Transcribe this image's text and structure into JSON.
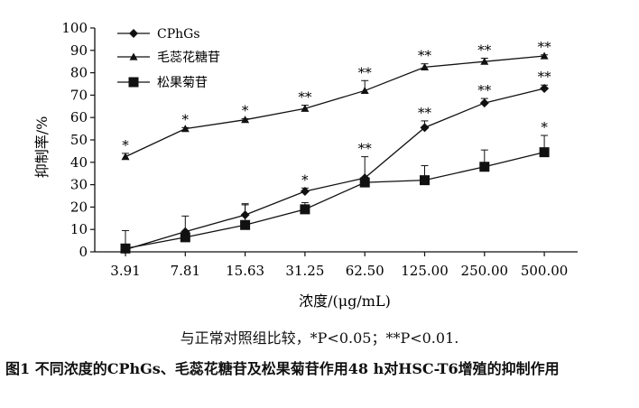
{
  "chart_data": {
    "type": "line",
    "categories": [
      "3.91",
      "7.81",
      "15.63",
      "31.25",
      "62.50",
      "125.00",
      "250.00",
      "500.00"
    ],
    "xlabel": "浓度/(μg/mL)",
    "ylabel": "抑制率/%",
    "ylim": [
      0,
      100
    ],
    "yticks": [
      0,
      10,
      20,
      30,
      40,
      50,
      60,
      70,
      80,
      90,
      100
    ],
    "grid": false,
    "legend_position": "top-left",
    "series": [
      {
        "name": "CPhGs",
        "marker": "diamond",
        "values": [
          1,
          9,
          16.5,
          27,
          33,
          55.5,
          66.5,
          73
        ],
        "error": [
          0,
          0,
          4.5,
          1.5,
          9.5,
          3,
          2,
          1.5
        ],
        "significance": [
          "",
          "",
          "",
          "*",
          "**",
          "**",
          "**",
          "**"
        ]
      },
      {
        "name": "毛蕊花糖苷",
        "marker": "triangle",
        "values": [
          42.5,
          55,
          59,
          64,
          72,
          82.5,
          85,
          87.5
        ],
        "error": [
          1.5,
          0.5,
          0.5,
          1.5,
          4.5,
          1.5,
          1.5,
          0.5
        ],
        "significance": [
          "*",
          "*",
          "*",
          "**",
          "**",
          "**",
          "**",
          "**"
        ]
      },
      {
        "name": "松果菊苷",
        "marker": "square",
        "values": [
          1.5,
          6.5,
          12,
          19,
          31,
          32,
          38,
          44.5
        ],
        "error": [
          8,
          9.5,
          9.5,
          3,
          0,
          6.5,
          7.5,
          7.5
        ],
        "significance": [
          "",
          "",
          "",
          "",
          "",
          "",
          "",
          "*"
        ]
      }
    ]
  },
  "footnote": "与正常对照组比较，*P<0.05；**P<0.01.",
  "caption": "图1 不同浓度的CPhGs、毛蕊花糖苷及松果菊苷作用48 h对HSC-T6增殖的抑制作用",
  "colors": {
    "ink": "#111111",
    "background": "#ffffff"
  }
}
